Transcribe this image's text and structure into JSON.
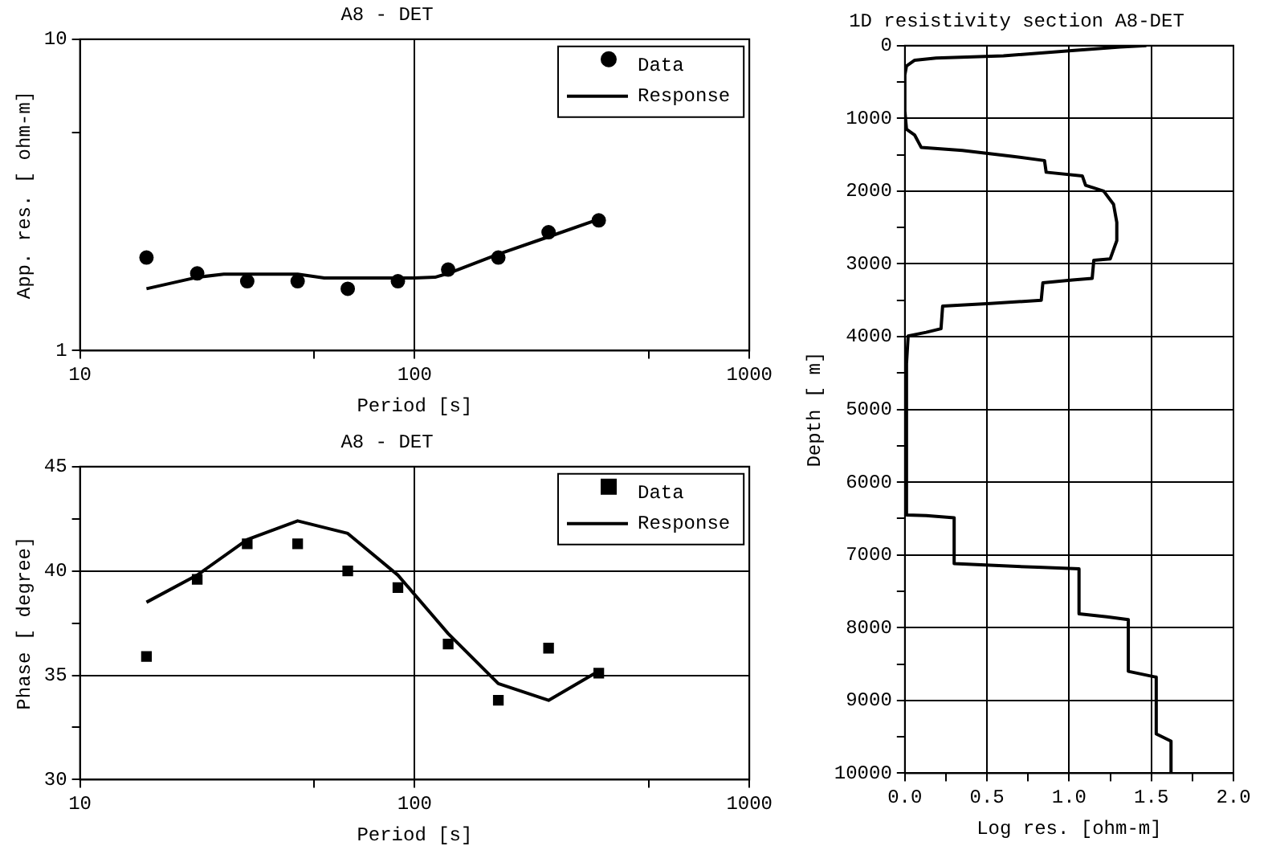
{
  "chart_data": [
    {
      "type": "line",
      "title": "A8 - DET",
      "xlabel": "Period [s]",
      "ylabel": "App. res. [ ohm-m]",
      "log": "xy",
      "xlim": [
        10,
        1000
      ],
      "ylim": [
        1,
        10
      ],
      "xticks": [
        10,
        {
          "value": 50,
          "label": null
        },
        100,
        {
          "value": 500,
          "label": null
        },
        1000
      ],
      "yticks": [
        1,
        {
          "value": 5,
          "label": null
        },
        10
      ],
      "grid": true,
      "legend": "top right",
      "series": [
        {
          "name": "Data",
          "type": "scatter",
          "marker": "circle",
          "color": "#000000",
          "x": [
            15.8,
            22.4,
            31.6,
            44.7,
            63.1,
            89.1,
            125.9,
            177.8,
            251.2,
            354.8
          ],
          "values": [
            1.99,
            1.77,
            1.67,
            1.67,
            1.58,
            1.67,
            1.82,
            1.99,
            2.4,
            2.62
          ]
        },
        {
          "name": "Response",
          "type": "line",
          "marker": "none",
          "color": "#000000",
          "x": [
            15.8,
            22.4,
            26.9,
            44.7,
            53.7,
            100,
            115,
            125.9,
            177.8,
            251.2,
            354.8
          ],
          "values": [
            1.58,
            1.72,
            1.76,
            1.76,
            1.71,
            1.71,
            1.72,
            1.77,
            2.04,
            2.32,
            2.64
          ]
        }
      ]
    },
    {
      "type": "line",
      "title": "A8 - DET",
      "xlabel": "Period [s]",
      "ylabel": "Phase [ degree]",
      "log": "x",
      "xlim": [
        10,
        1000
      ],
      "ylim": [
        30,
        45
      ],
      "xticks": [
        10,
        {
          "value": 50,
          "label": null
        },
        100,
        {
          "value": 500,
          "label": null
        },
        1000
      ],
      "yticks": [
        30,
        {
          "value": 32.5,
          "label": null
        },
        35,
        {
          "value": 37.5,
          "label": null
        },
        40,
        {
          "value": 42.5,
          "label": null
        },
        45
      ],
      "grid": true,
      "legend": "top right",
      "series": [
        {
          "name": "Data",
          "type": "scatter",
          "marker": "square",
          "color": "#000000",
          "x": [
            15.8,
            22.4,
            31.6,
            44.7,
            63.1,
            89.1,
            125.9,
            177.8,
            251.2,
            354.8
          ],
          "values": [
            35.9,
            39.6,
            41.3,
            41.3,
            40.0,
            39.2,
            36.5,
            33.8,
            36.3,
            35.1
          ]
        },
        {
          "name": "Response",
          "type": "line",
          "marker": "none",
          "color": "#000000",
          "x": [
            15.8,
            22.4,
            31.6,
            44.7,
            63.1,
            89.1,
            125.9,
            177.8,
            251.2,
            354.8
          ],
          "values": [
            38.5,
            39.8,
            41.5,
            42.4,
            41.8,
            39.8,
            37.0,
            34.6,
            33.8,
            35.2
          ]
        }
      ]
    },
    {
      "type": "line",
      "title": "1D resistivity section A8-DET",
      "xlabel": "Log res. [ohm-m]",
      "ylabel": "Depth [ m]",
      "xlim": [
        0,
        2
      ],
      "ylim": [
        10000,
        0
      ],
      "xticks": [
        {
          "value": 0,
          "label": "0.0"
        },
        {
          "value": 0.25,
          "label": null
        },
        {
          "value": 0.5,
          "label": "0.5"
        },
        {
          "value": 0.75,
          "label": null
        },
        {
          "value": 1,
          "label": "1.0"
        },
        {
          "value": 1.25,
          "label": null
        },
        {
          "value": 1.5,
          "label": "1.5"
        },
        {
          "value": 1.75,
          "label": null
        },
        {
          "value": 2,
          "label": "2.0"
        }
      ],
      "yticks": [
        0,
        {
          "value": 500,
          "label": null
        },
        1000,
        {
          "value": 1500,
          "label": null
        },
        2000,
        {
          "value": 2500,
          "label": null
        },
        3000,
        {
          "value": 3500,
          "label": null
        },
        4000,
        {
          "value": 4500,
          "label": null
        },
        5000,
        {
          "value": 5500,
          "label": null
        },
        6000,
        {
          "value": 6500,
          "label": null
        },
        7000,
        {
          "value": 7500,
          "label": null
        },
        8000,
        {
          "value": 8500,
          "label": null
        },
        9000,
        {
          "value": 9500,
          "label": null
        },
        10000
      ],
      "grid": true,
      "series": [
        {
          "type": "line",
          "marker": "none",
          "color": "#000000",
          "x": [
            1.47,
            1.31,
            1.0,
            0.6,
            0.19,
            0.06,
            0.01,
            0,
            0,
            0.01,
            0.06,
            0.1,
            0.35,
            0.65,
            0.85,
            0.86,
            1.08,
            1.1,
            1.21,
            1.27,
            1.29,
            1.29,
            1.25,
            1.15,
            1.14,
            1.02,
            0.84,
            0.83,
            0.52,
            0.23,
            0.22,
            0.13,
            0.02,
            0.01,
            0.01,
            0.13,
            0.3,
            0.3,
            0.6,
            0.81,
            1.06,
            1.06,
            1.23,
            1.36,
            1.36,
            1.53,
            1.53,
            1.62,
            1.62
          ],
          "values": [
            0,
            20,
            70,
            140,
            170,
            200,
            280,
            400,
            900,
            1150,
            1230,
            1400,
            1440,
            1520,
            1580,
            1740,
            1790,
            1920,
            2000,
            2180,
            2430,
            2680,
            2930,
            2950,
            3200,
            3220,
            3260,
            3500,
            3545,
            3580,
            3890,
            3940,
            3990,
            4370,
            6450,
            6460,
            6490,
            7120,
            7150,
            7170,
            7190,
            7810,
            7850,
            7890,
            8600,
            8680,
            9460,
            9560,
            10000
          ]
        }
      ]
    }
  ]
}
